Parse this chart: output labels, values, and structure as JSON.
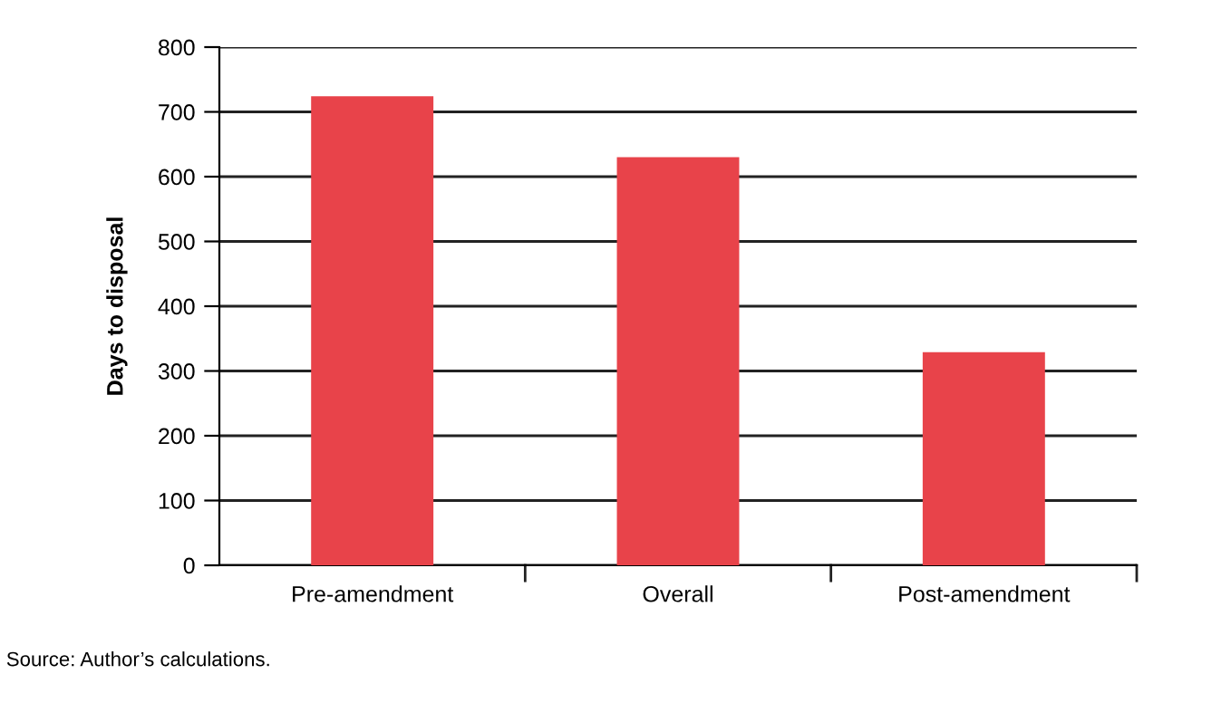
{
  "chart_data": {
    "type": "bar",
    "ylabel": "Days to disposal",
    "categories": [
      "Pre-amendment",
      "Overall",
      "Post-amendment"
    ],
    "values": [
      724,
      630,
      329
    ],
    "color": "#e8434a",
    "ylim": [
      0,
      800
    ],
    "yticks": [
      0,
      100,
      200,
      300,
      400,
      500,
      600,
      700,
      800
    ],
    "grid": "y",
    "annotations": [
      "Source: Author’s calculations."
    ]
  }
}
